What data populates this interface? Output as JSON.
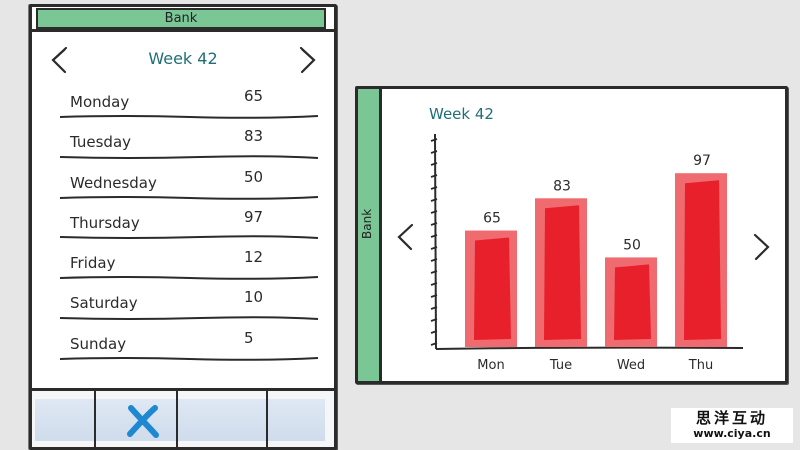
{
  "app": {
    "title": "Bank"
  },
  "week": {
    "title": "Week 42"
  },
  "days": [
    {
      "name": "Monday",
      "value": "65"
    },
    {
      "name": "Tuesday",
      "value": "83"
    },
    {
      "name": "Wednesday",
      "value": "50"
    },
    {
      "name": "Thursday",
      "value": "97"
    },
    {
      "name": "Friday",
      "value": "12"
    },
    {
      "name": "Saturday",
      "value": "10"
    },
    {
      "name": "Sunday",
      "value": "5"
    }
  ],
  "toolbar": {
    "icons": [
      "close-icon"
    ]
  },
  "colors": {
    "titlebar": "#7ac795",
    "week_title": "#1f6f78",
    "bar_outer": "#ef6b6f",
    "bar_inner": "#e8202c"
  },
  "chart_data": {
    "type": "bar",
    "title": "Week 42",
    "categories": [
      "Mon",
      "Tue",
      "Wed",
      "Thu"
    ],
    "values": [
      65,
      83,
      50,
      97
    ],
    "xlabel": "",
    "ylabel": "",
    "ylim": [
      0,
      120
    ],
    "grid": false,
    "legend": "none"
  },
  "watermark": {
    "text": "思洋互动",
    "url": "www.ciya.cn"
  }
}
